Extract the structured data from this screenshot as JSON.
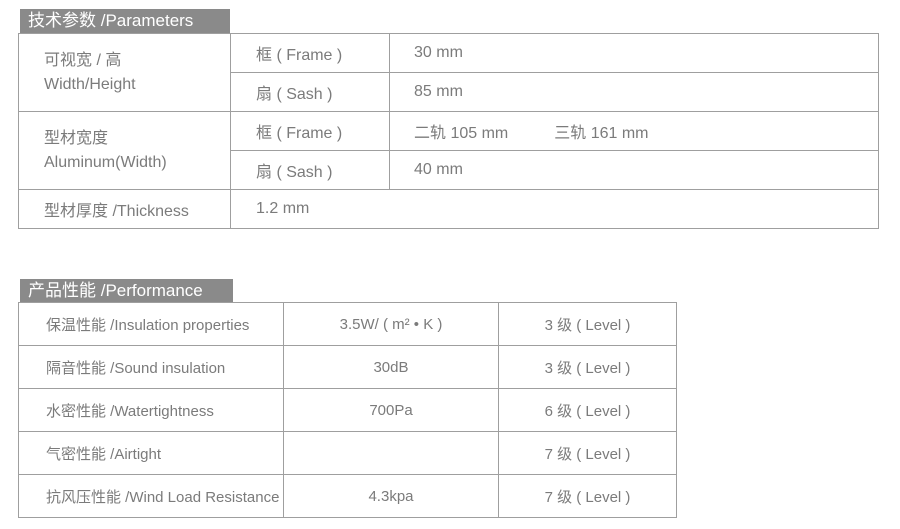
{
  "colors": {
    "header_bg": "#8a8a8a",
    "header_text": "#ffffff",
    "table_text": "#7b7b7b",
    "border": "#9f9f9f"
  },
  "parameters": {
    "title": "技术参数 /Parameters",
    "width_height": {
      "label_zh": "可视宽 / 高",
      "label_en": "Width/Height",
      "frame_label": "框 ( Frame )",
      "frame_value": "30 mm",
      "sash_label": "扇 ( Sash )",
      "sash_value": "85 mm"
    },
    "aluminum_width": {
      "label_zh": "型材宽度",
      "label_en": "Aluminum(Width)",
      "frame_label": "框 ( Frame )",
      "frame_value_two_track": "二轨 105 mm",
      "frame_value_three_track": "三轨 161 mm",
      "sash_label": "扇 ( Sash )",
      "sash_value": "40 mm"
    },
    "thickness": {
      "label": "型材厚度 /Thickness",
      "value": "1.2 mm"
    }
  },
  "performance": {
    "title": "产品性能 /Performance",
    "rows": [
      {
        "label": "保温性能 /Insulation properties",
        "value": "3.5W/ ( m² • K )",
        "level": "3 级 ( Level )"
      },
      {
        "label": "隔音性能 /Sound insulation",
        "value": "30dB",
        "level": "3 级 ( Level )"
      },
      {
        "label": "水密性能 /Watertightness",
        "value": "700Pa",
        "level": "6 级 ( Level )"
      },
      {
        "label": "气密性能 /Airtight",
        "value": "",
        "level": "7 级 ( Level )"
      },
      {
        "label": "抗风压性能 /Wind Load Resistance",
        "value": "4.3kpa",
        "level": "7 级 ( Level )"
      }
    ]
  }
}
